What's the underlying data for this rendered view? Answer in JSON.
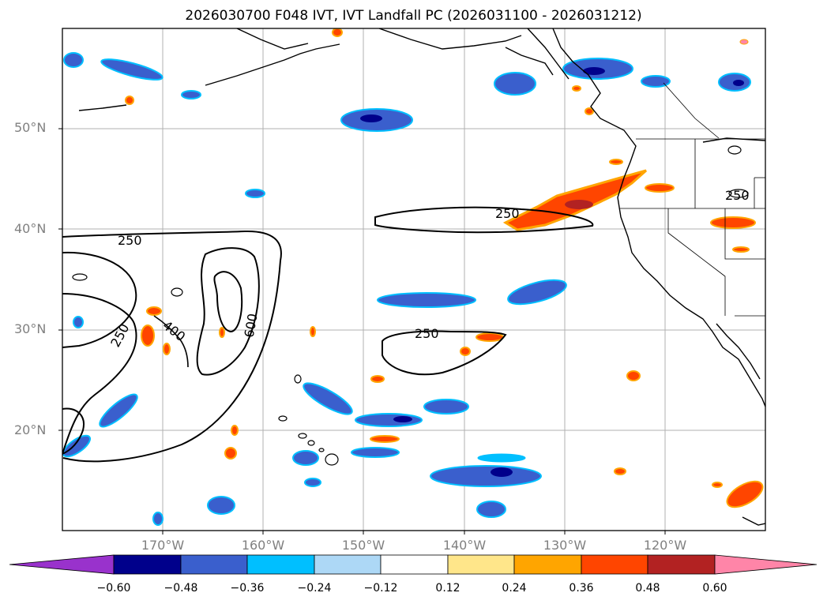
{
  "title": "2026030700 F048 IVT, IVT Landfall PC (2026031100 - 2026031212)",
  "map": {
    "lat_labels": [
      "50°N",
      "40°N",
      "30°N",
      "20°N"
    ],
    "lon_labels": [
      "170°W",
      "160°W",
      "150°W",
      "140°W",
      "130°W",
      "120°W"
    ],
    "contour_labels": [
      "250",
      "250",
      "250",
      "250",
      "400",
      "600",
      "250"
    ],
    "colors": {
      "coast": "#000000",
      "contour": "#000000",
      "grid": "#b0b0b0"
    }
  },
  "colorbar": {
    "ticks": [
      "−0.60",
      "−0.48",
      "−0.36",
      "−0.24",
      "−0.12",
      "0.12",
      "0.24",
      "0.36",
      "0.48",
      "0.60"
    ],
    "colors": [
      "#9932cc",
      "#00008b",
      "#3a5fcd",
      "#00bfff",
      "#add8f6",
      "#ffffff",
      "#ffe68a",
      "#ffa500",
      "#ff4500",
      "#b22222",
      "#ff85a8"
    ]
  }
}
